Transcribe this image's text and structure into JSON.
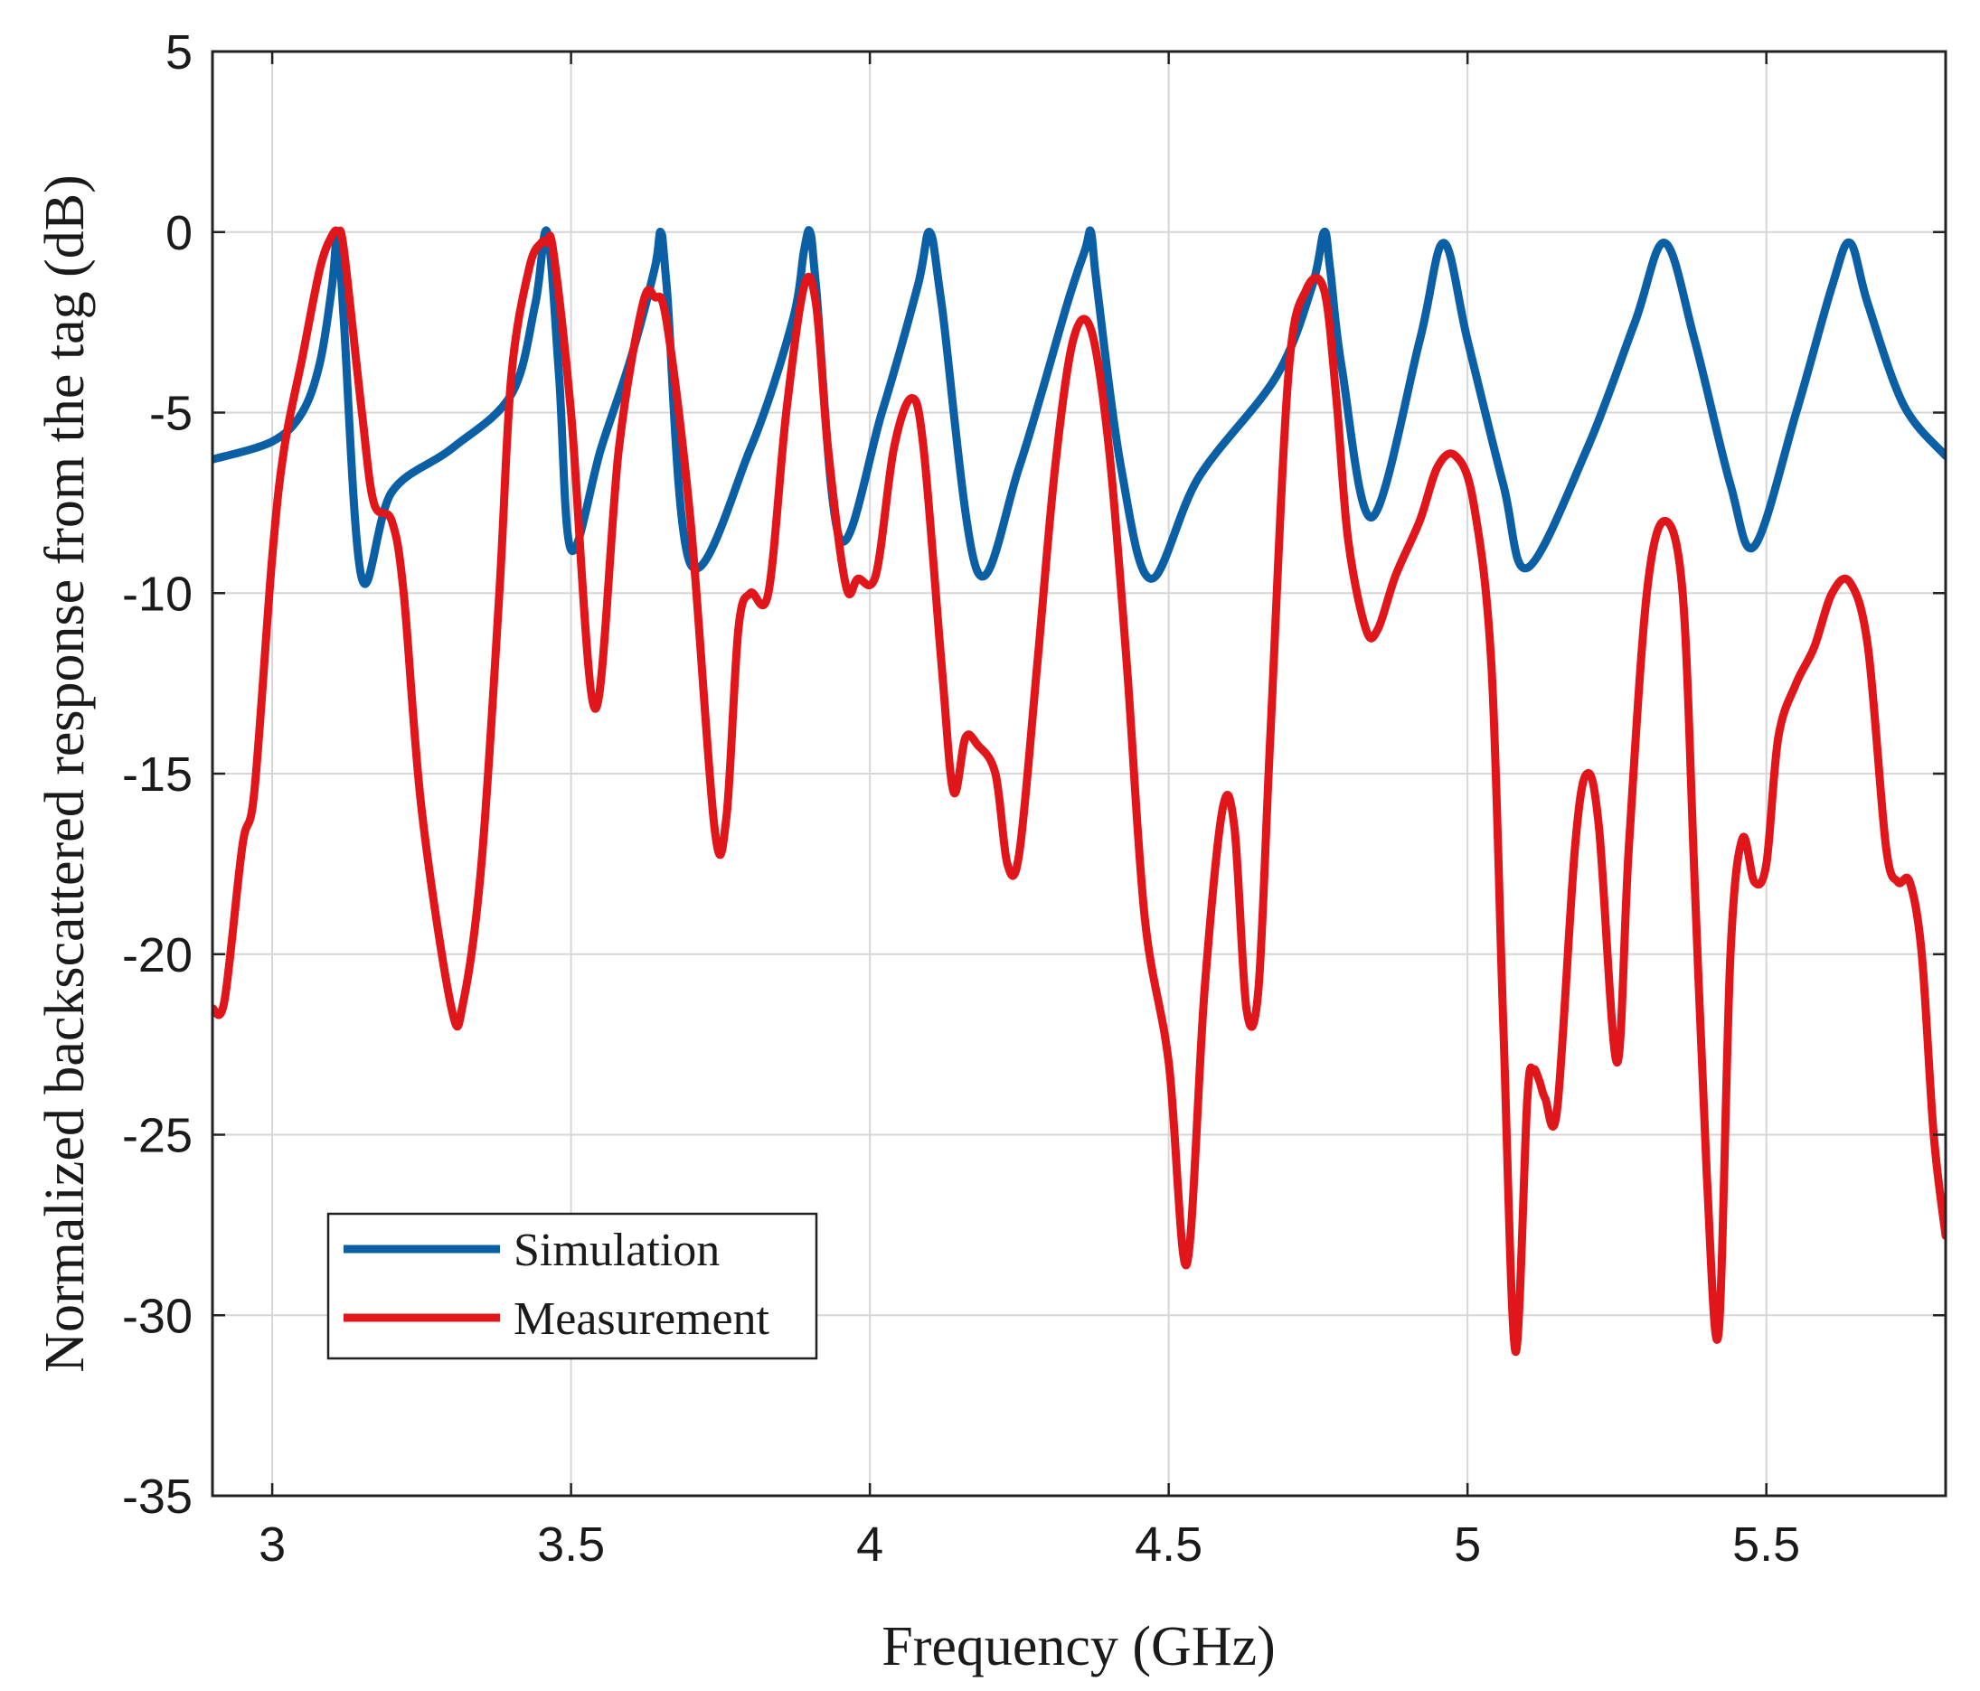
{
  "chart_data": {
    "type": "line",
    "title": "",
    "xlabel": "Frequency (GHz)",
    "ylabel": "Normalized backscattered response from the tag (dB)",
    "xlim": [
      2.9,
      5.8
    ],
    "ylim": [
      -35,
      5
    ],
    "xticks": [
      3,
      3.5,
      4,
      4.5,
      5,
      5.5
    ],
    "xtick_labels": [
      "3",
      "3.5",
      "4",
      "4.5",
      "5",
      "5.5"
    ],
    "yticks": [
      5,
      0,
      -5,
      -10,
      -15,
      -20,
      -25,
      -30,
      -35
    ],
    "ytick_labels": [
      "5",
      "0",
      "-5",
      "-10",
      "-15",
      "-20",
      "-25",
      "-30",
      "-35"
    ],
    "grid": true,
    "legend_position": "bottom-left",
    "series": [
      {
        "name": "Simulation",
        "color": "#0b5fa5",
        "x": [
          2.9,
          3.0,
          3.05,
          3.08,
          3.1,
          3.11,
          3.12,
          3.15,
          3.2,
          3.3,
          3.4,
          3.44,
          3.46,
          3.48,
          3.5,
          3.55,
          3.6,
          3.64,
          3.65,
          3.66,
          3.7,
          3.8,
          3.87,
          3.89,
          3.9,
          3.91,
          3.95,
          4.02,
          4.08,
          4.1,
          4.12,
          4.18,
          4.25,
          4.33,
          4.36,
          4.37,
          4.38,
          4.42,
          4.47,
          4.55,
          4.68,
          4.74,
          4.76,
          4.77,
          4.79,
          4.84,
          4.92,
          4.96,
          5.0,
          5.06,
          5.1,
          5.2,
          5.28,
          5.33,
          5.38,
          5.44,
          5.48,
          5.55,
          5.61,
          5.64,
          5.67,
          5.73,
          5.8
        ],
        "values": [
          -6.3,
          -5.8,
          -5.0,
          -3.6,
          -1.5,
          0,
          -2.5,
          -9.6,
          -7.2,
          -6.0,
          -4.5,
          -2.0,
          0,
          -4.0,
          -8.8,
          -6.0,
          -3.5,
          -1.0,
          0,
          -1.5,
          -9.2,
          -6.0,
          -2.5,
          -0.5,
          0,
          -1.5,
          -8.5,
          -5.0,
          -1.5,
          0,
          -2.0,
          -9.4,
          -6.5,
          -2.0,
          -0.5,
          0,
          -1.5,
          -6.5,
          -9.6,
          -6.8,
          -4.0,
          -1.5,
          0,
          -1.0,
          -3.8,
          -7.9,
          -3.0,
          -0.3,
          -3.0,
          -7.0,
          -9.3,
          -6.0,
          -2.5,
          -0.3,
          -3.0,
          -7.0,
          -8.7,
          -5.0,
          -1.5,
          -0.3,
          -2.0,
          -4.8,
          -6.2
        ]
      },
      {
        "name": "Measurement",
        "color": "#e0161b",
        "x": [
          2.9,
          2.92,
          2.95,
          2.97,
          3.0,
          3.02,
          3.05,
          3.08,
          3.1,
          3.11,
          3.12,
          3.15,
          3.17,
          3.2,
          3.22,
          3.25,
          3.3,
          3.32,
          3.35,
          3.38,
          3.4,
          3.43,
          3.45,
          3.46,
          3.47,
          3.5,
          3.54,
          3.58,
          3.62,
          3.64,
          3.66,
          3.7,
          3.74,
          3.76,
          3.78,
          3.8,
          3.83,
          3.86,
          3.89,
          3.91,
          3.93,
          3.96,
          3.98,
          4.01,
          4.04,
          4.07,
          4.09,
          4.12,
          4.14,
          4.16,
          4.18,
          4.21,
          4.23,
          4.25,
          4.28,
          4.31,
          4.34,
          4.37,
          4.4,
          4.43,
          4.46,
          4.5,
          4.53,
          4.56,
          4.59,
          4.61,
          4.63,
          4.65,
          4.67,
          4.7,
          4.73,
          4.76,
          4.78,
          4.8,
          4.83,
          4.85,
          4.88,
          4.92,
          4.95,
          4.98,
          5.01,
          5.04,
          5.06,
          5.08,
          5.1,
          5.11,
          5.12,
          5.13,
          5.15,
          5.18,
          5.2,
          5.22,
          5.25,
          5.27,
          5.3,
          5.33,
          5.36,
          5.38,
          5.4,
          5.42,
          5.44,
          5.46,
          5.48,
          5.5,
          5.52,
          5.55,
          5.58,
          5.61,
          5.64,
          5.67,
          5.7,
          5.72,
          5.74,
          5.76,
          5.78,
          5.8
        ],
        "values": [
          -21.5,
          -21.3,
          -17.0,
          -15.5,
          -9.0,
          -6.0,
          -3.5,
          -1.0,
          -0.1,
          0,
          -0.5,
          -5.0,
          -7.5,
          -8.0,
          -10.0,
          -16.0,
          -21.5,
          -21.3,
          -17.5,
          -10.0,
          -4.0,
          -1.0,
          -0.3,
          -0.3,
          -0.5,
          -5.0,
          -13.2,
          -6.0,
          -2.0,
          -1.8,
          -2.5,
          -8.0,
          -16.5,
          -16.2,
          -11.0,
          -10.0,
          -10.0,
          -5.0,
          -1.5,
          -2.0,
          -6.0,
          -9.8,
          -9.6,
          -9.5,
          -6.0,
          -4.6,
          -6.0,
          -12.0,
          -15.5,
          -14.0,
          -14.2,
          -15.0,
          -17.5,
          -17.2,
          -12.0,
          -6.5,
          -3.0,
          -2.7,
          -6.0,
          -12.0,
          -19.0,
          -23.0,
          -28.6,
          -21.0,
          -16.0,
          -16.5,
          -21.5,
          -21.0,
          -14.0,
          -4.0,
          -1.6,
          -1.6,
          -4.5,
          -8.5,
          -11.0,
          -11.0,
          -9.5,
          -8.0,
          -6.5,
          -6.2,
          -7.5,
          -12.0,
          -22.0,
          -31.0,
          -24.0,
          -23.2,
          -23.5,
          -24.0,
          -24.3,
          -17.0,
          -15.0,
          -16.5,
          -23.0,
          -17.0,
          -10.0,
          -8.0,
          -10.0,
          -18.0,
          -26.0,
          -30.5,
          -20.0,
          -16.8,
          -18.0,
          -17.5,
          -14.0,
          -12.5,
          -11.5,
          -10.0,
          -9.7,
          -11.5,
          -17.0,
          -18.0,
          -18.0,
          -20.0,
          -25.0,
          -27.8
        ]
      }
    ]
  }
}
